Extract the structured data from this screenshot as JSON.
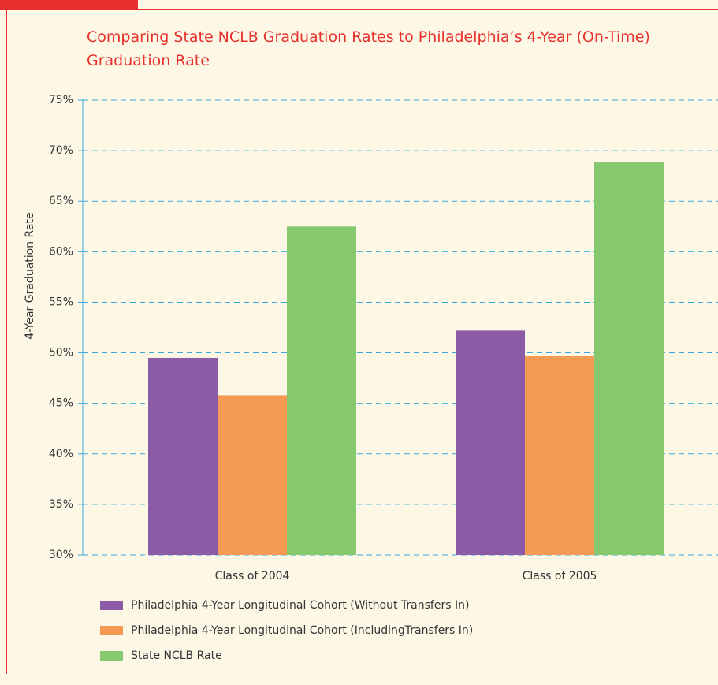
{
  "chart_data": {
    "type": "bar",
    "title": "Comparing State NCLB Graduation Rates to Philadelphia’s 4-Year (On-Time) Graduation Rate",
    "y_label": "4-Year Graduation Rate",
    "categories": [
      "Class of 2004",
      "Class of 2005"
    ],
    "series": [
      {
        "name": "Philadelphia 4-Year Longitudinal Cohort (Without Transfers In)",
        "color": "#8b5ba6",
        "values": [
          49.5,
          52.2
        ]
      },
      {
        "name": "Philadelphia 4-Year Longitudinal Cohort (IncludingTransfers In)",
        "color": "#f59a53",
        "values": [
          45.8,
          49.7
        ]
      },
      {
        "name": "State NCLB Rate",
        "color": "#86c86e",
        "values": [
          62.5,
          68.9
        ]
      }
    ],
    "ylim": [
      30,
      75
    ],
    "yticks": [
      {
        "value": 30,
        "label": "30%"
      },
      {
        "value": 35,
        "label": "35%"
      },
      {
        "value": 40,
        "label": "40%"
      },
      {
        "value": 45,
        "label": "45%"
      },
      {
        "value": 50,
        "label": "50%"
      },
      {
        "value": 55,
        "label": "55%"
      },
      {
        "value": 60,
        "label": "60%"
      },
      {
        "value": 65,
        "label": "65%"
      },
      {
        "value": 70,
        "label": "70%"
      },
      {
        "value": 75,
        "label": "75%"
      }
    ],
    "grid": true
  }
}
